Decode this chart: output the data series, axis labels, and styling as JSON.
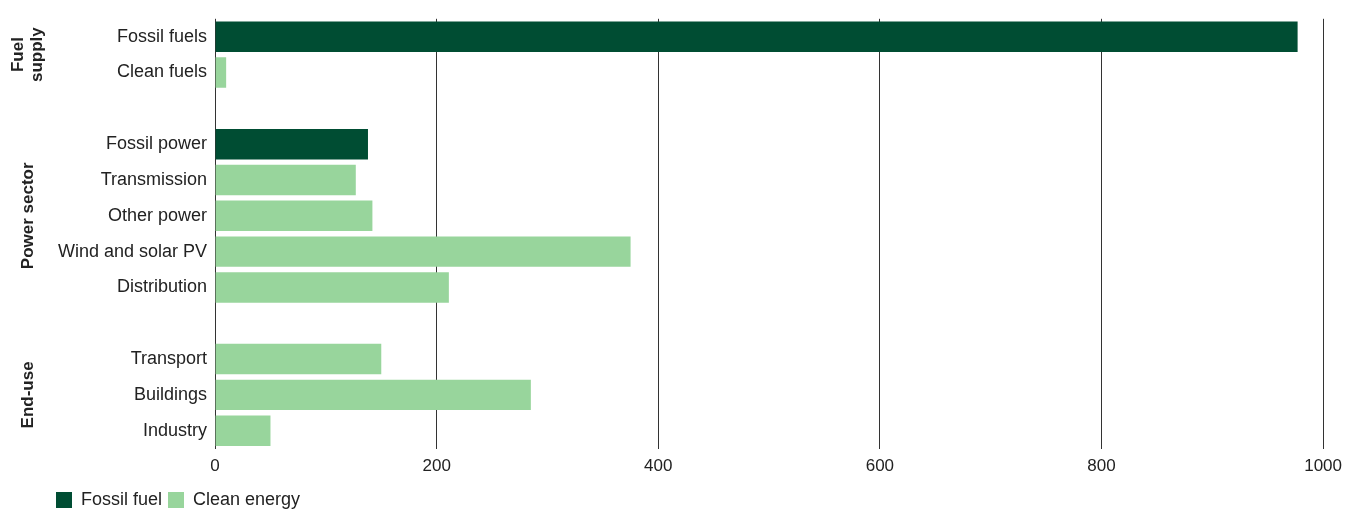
{
  "chart_data": {
    "type": "bar",
    "orientation": "horizontal",
    "categories": [
      "Fossil fuels",
      "Clean fuels",
      null,
      "Fossil power",
      "Transmission",
      "Other power",
      "Wind and solar PV",
      "Distribution",
      null,
      "Transport",
      "Buildings",
      "Industry"
    ],
    "series": [
      {
        "name": "Fossil fuel",
        "color": "#004d33",
        "values": [
          977,
          null,
          null,
          138,
          null,
          null,
          null,
          null,
          null,
          null,
          null,
          null
        ]
      },
      {
        "name": "Clean energy",
        "color": "#98d59c",
        "values": [
          null,
          10,
          null,
          null,
          127,
          142,
          375,
          211,
          null,
          150,
          285,
          50
        ]
      }
    ],
    "xlim": [
      0,
      1000
    ],
    "xticks": [
      0,
      200,
      400,
      600,
      800,
      1000
    ],
    "grid": "x",
    "legend": "bottom",
    "annotations": [
      "Fuel supply",
      "Power sector",
      "End-use"
    ]
  }
}
